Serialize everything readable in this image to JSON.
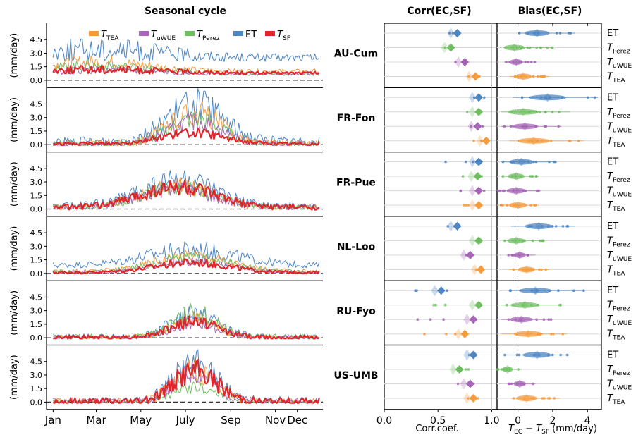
{
  "titles": {
    "left": "Seasonal cycle",
    "corr": "Corr(EC,SF)",
    "bias": "Bias(EC,SF)"
  },
  "ylabel": "(mm/day)",
  "corr_xlabel": "Corr.coef.",
  "bias_xlabel": "T_EC − T_SF (mm/day)",
  "colors": {
    "TEA": "#f59b3c",
    "uWUE": "#a866b8",
    "Perez": "#6fbf62",
    "ET": "#4e86c2",
    "SF": "#e0252b",
    "zero_line": "#333333",
    "grid": "#d9d9d9"
  },
  "legend": [
    {
      "key": "TEA",
      "label": "T",
      "sub": "TEA"
    },
    {
      "key": "uWUE",
      "label": "T",
      "sub": "uWUE"
    },
    {
      "key": "Perez",
      "label": "T",
      "sub": "Perez"
    },
    {
      "key": "ET",
      "label": "ET",
      "sub": ""
    },
    {
      "key": "SF",
      "label": "T",
      "sub": "SF"
    }
  ],
  "chart_data": [
    {
      "type": "line",
      "title": "Seasonal cycle",
      "ylabel": "(mm/day)",
      "x_ticks": [
        "Jan",
        "Mar",
        "May",
        "July",
        "Sep",
        "Nov",
        "Dec"
      ],
      "x_tick_days": [
        1,
        60,
        121,
        182,
        244,
        305,
        335
      ],
      "y_ticks": [
        0.0,
        1.5,
        3.0,
        4.5
      ],
      "ylim": [
        -0.5,
        6.0
      ],
      "sites": [
        {
          "name": "AU-Cum",
          "ET": {
            "base": 2.5,
            "peak": 3.4,
            "center": 60,
            "width": 120
          },
          "SF": {
            "base": 0.8,
            "peak": 1.2,
            "center": 60,
            "width": 120
          },
          "TEA": {
            "base": 1.0,
            "peak": 2.0,
            "center": 60,
            "width": 100
          },
          "uWUE": {
            "base": 0.7,
            "peak": 1.1,
            "center": 60,
            "width": 100
          },
          "Perez": {
            "base": 0.7,
            "peak": 1.6,
            "center": 60,
            "width": 100
          }
        },
        {
          "name": "FR-Fon",
          "ET": {
            "base": 0.3,
            "peak": 4.5,
            "center": 195,
            "width": 55
          },
          "SF": {
            "base": 0.1,
            "peak": 1.3,
            "center": 190,
            "width": 60
          },
          "TEA": {
            "base": 0.1,
            "peak": 3.6,
            "center": 195,
            "width": 50
          },
          "uWUE": {
            "base": 0.1,
            "peak": 2.5,
            "center": 195,
            "width": 50
          },
          "Perez": {
            "base": 0.1,
            "peak": 2.8,
            "center": 195,
            "width": 50
          }
        },
        {
          "name": "FR-Pue",
          "ET": {
            "base": 0.3,
            "peak": 3.3,
            "center": 170,
            "width": 70
          },
          "SF": {
            "base": 0.2,
            "peak": 2.4,
            "center": 170,
            "width": 70
          },
          "TEA": {
            "base": 0.2,
            "peak": 2.6,
            "center": 170,
            "width": 65
          },
          "uWUE": {
            "base": 0.2,
            "peak": 2.3,
            "center": 170,
            "width": 65
          },
          "Perez": {
            "base": 0.2,
            "peak": 2.4,
            "center": 170,
            "width": 65
          }
        },
        {
          "name": "NL-Loo",
          "ET": {
            "base": 0.9,
            "peak": 2.6,
            "center": 190,
            "width": 85
          },
          "SF": {
            "base": 0.1,
            "peak": 1.2,
            "center": 190,
            "width": 70
          },
          "TEA": {
            "base": 0.2,
            "peak": 2.0,
            "center": 190,
            "width": 70
          },
          "uWUE": {
            "base": 0.1,
            "peak": 1.3,
            "center": 190,
            "width": 70
          },
          "Perez": {
            "base": 0.2,
            "peak": 1.7,
            "center": 190,
            "width": 70
          }
        },
        {
          "name": "RU-Fyo",
          "ET": {
            "base": 0.1,
            "peak": 2.6,
            "center": 195,
            "width": 45
          },
          "SF": {
            "base": 0.05,
            "peak": 1.8,
            "center": 195,
            "width": 45
          },
          "TEA": {
            "base": 0.05,
            "peak": 2.1,
            "center": 195,
            "width": 42
          },
          "uWUE": {
            "base": 0.05,
            "peak": 1.5,
            "center": 195,
            "width": 42
          },
          "Perez": {
            "base": 0.05,
            "peak": 2.8,
            "center": 195,
            "width": 40
          }
        },
        {
          "name": "US-UMB",
          "ET": {
            "base": 0.1,
            "peak": 4.2,
            "center": 195,
            "width": 42
          },
          "SF": {
            "base": 0.05,
            "peak": 3.4,
            "center": 195,
            "width": 42
          },
          "TEA": {
            "base": 0.05,
            "peak": 3.5,
            "center": 195,
            "width": 40
          },
          "uWUE": {
            "base": 0.05,
            "peak": 3.2,
            "center": 195,
            "width": 40
          },
          "Perez": {
            "base": 0.05,
            "peak": 1.6,
            "center": 195,
            "width": 40
          }
        }
      ]
    },
    {
      "type": "scatter",
      "title": "Corr(EC,SF)",
      "xlabel": "Corr.coef.",
      "xlim": [
        0.0,
        1.05
      ],
      "x_ticks": [
        0.0,
        0.5,
        1.0
      ],
      "x_tick_labels": [
        "0.0",
        "0.5",
        "1.0"
      ],
      "rows": [
        "ET",
        "T_Perez",
        "T_uWUE",
        "T_TEA"
      ],
      "row_labels": [
        {
          "main": "ET",
          "sub": ""
        },
        {
          "main": "T",
          "sub": "Perez"
        },
        {
          "main": "T",
          "sub": "uWUE"
        },
        {
          "main": "T",
          "sub": "TEA"
        }
      ],
      "sites": [
        {
          "name": "AU-Cum",
          "values": {
            "ET": 0.68,
            "Perez": 0.62,
            "uWUE": 0.75,
            "TEA": 0.85
          },
          "spread": {
            "ET": [
              0.58,
              0.82
            ],
            "Perez": [
              0.55,
              0.72
            ],
            "uWUE": [
              0.65,
              0.82
            ],
            "TEA": [
              0.78,
              0.9
            ]
          }
        },
        {
          "name": "FR-Fon",
          "values": {
            "ET": 0.88,
            "Perez": 0.88,
            "uWUE": 0.87,
            "TEA": 0.95
          },
          "spread": {
            "ET": [
              0.7,
              0.95
            ],
            "Perez": [
              0.75,
              0.94
            ],
            "uWUE": [
              0.75,
              0.93
            ],
            "TEA": [
              0.82,
              0.98
            ]
          }
        },
        {
          "name": "FR-Pue",
          "values": {
            "ET": 0.88,
            "Perez": 0.87,
            "uWUE": 0.88,
            "TEA": 0.88
          },
          "spread": {
            "ET": [
              0.5,
              0.93
            ],
            "Perez": [
              0.7,
              0.92
            ],
            "uWUE": [
              0.68,
              0.93
            ],
            "TEA": [
              0.72,
              0.93
            ]
          }
        },
        {
          "name": "NL-Loo",
          "values": {
            "ET": 0.68,
            "Perez": 0.88,
            "uWUE": 0.8,
            "TEA": 0.9
          },
          "spread": {
            "ET": [
              0.55,
              0.7
            ],
            "Perez": [
              0.85,
              0.92
            ],
            "uWUE": [
              0.72,
              0.85
            ],
            "TEA": [
              0.78,
              0.93
            ]
          }
        },
        {
          "name": "RU-Fyo",
          "values": {
            "ET": 0.53,
            "Perez": 0.88,
            "uWUE": 0.83,
            "TEA": 0.75
          },
          "spread": {
            "ET": [
              0.22,
              0.6
            ],
            "Perez": [
              0.38,
              0.9
            ],
            "uWUE": [
              0.2,
              0.85
            ],
            "TEA": [
              0.3,
              0.8
            ]
          }
        },
        {
          "name": "US-UMB",
          "values": {
            "ET": 0.83,
            "Perez": 0.7,
            "uWUE": 0.8,
            "TEA": 0.83
          },
          "spread": {
            "ET": [
              0.72,
              0.9
            ],
            "Perez": [
              0.6,
              0.82
            ],
            "uWUE": [
              0.68,
              0.88
            ],
            "TEA": [
              0.75,
              0.88
            ]
          }
        }
      ]
    },
    {
      "type": "scatter",
      "title": "Bias(EC,SF)",
      "xlabel": "T_EC − T_SF (mm/day)",
      "xlim": [
        -1.2,
        4.8
      ],
      "x_ticks": [
        0,
        2,
        4
      ],
      "x_tick_labels": [
        "0",
        "2",
        "4"
      ],
      "sites": [
        {
          "name": "AU-Cum",
          "values": {
            "ET": 1.1,
            "Perez": -0.2,
            "uWUE": -0.1,
            "TEA": 0.3
          },
          "spread": {
            "ET": [
              0.0,
              3.3
            ],
            "Perez": [
              -0.8,
              2.0
            ],
            "uWUE": [
              -0.8,
              1.0
            ],
            "TEA": [
              -0.5,
              1.8
            ]
          }
        },
        {
          "name": "FR-Fon",
          "values": {
            "ET": 1.7,
            "Perez": 0.3,
            "uWUE": 0.4,
            "TEA": 0.9
          },
          "spread": {
            "ET": [
              -0.3,
              4.6
            ],
            "Perez": [
              -1.0,
              3.0
            ],
            "uWUE": [
              -1.0,
              2.5
            ],
            "TEA": [
              -0.5,
              3.8
            ]
          }
        },
        {
          "name": "FR-Pue",
          "values": {
            "ET": 0.2,
            "Perez": -0.1,
            "uWUE": -0.1,
            "TEA": 0.0
          },
          "spread": {
            "ET": [
              -1.0,
              2.2
            ],
            "Perez": [
              -1.0,
              1.2
            ],
            "uWUE": [
              -1.2,
              1.3
            ],
            "TEA": [
              -1.2,
              1.2
            ]
          }
        },
        {
          "name": "NL-Loo",
          "values": {
            "ET": 1.2,
            "Perez": -0.1,
            "uWUE": 0.1,
            "TEA": 0.5
          },
          "spread": {
            "ET": [
              -0.4,
              3.3
            ],
            "Perez": [
              -0.8,
              1.5
            ],
            "uWUE": [
              -0.6,
              1.0
            ],
            "TEA": [
              -0.5,
              1.8
            ]
          }
        },
        {
          "name": "RU-Fyo",
          "values": {
            "ET": 1.0,
            "Perez": 0.4,
            "uWUE": 0.2,
            "TEA": 0.6
          },
          "spread": {
            "ET": [
              -0.5,
              3.8
            ],
            "Perez": [
              -1.0,
              2.5
            ],
            "uWUE": [
              -1.0,
              2.0
            ],
            "TEA": [
              -1.0,
              2.8
            ]
          }
        },
        {
          "name": "US-UMB",
          "values": {
            "ET": 1.1,
            "Perez": -0.6,
            "uWUE": 0.1,
            "TEA": 0.5
          },
          "spread": {
            "ET": [
              -0.8,
              3.0
            ],
            "Perez": [
              -1.2,
              0.2
            ],
            "uWUE": [
              -0.6,
              1.0
            ],
            "TEA": [
              -0.4,
              2.4
            ]
          }
        }
      ]
    }
  ]
}
